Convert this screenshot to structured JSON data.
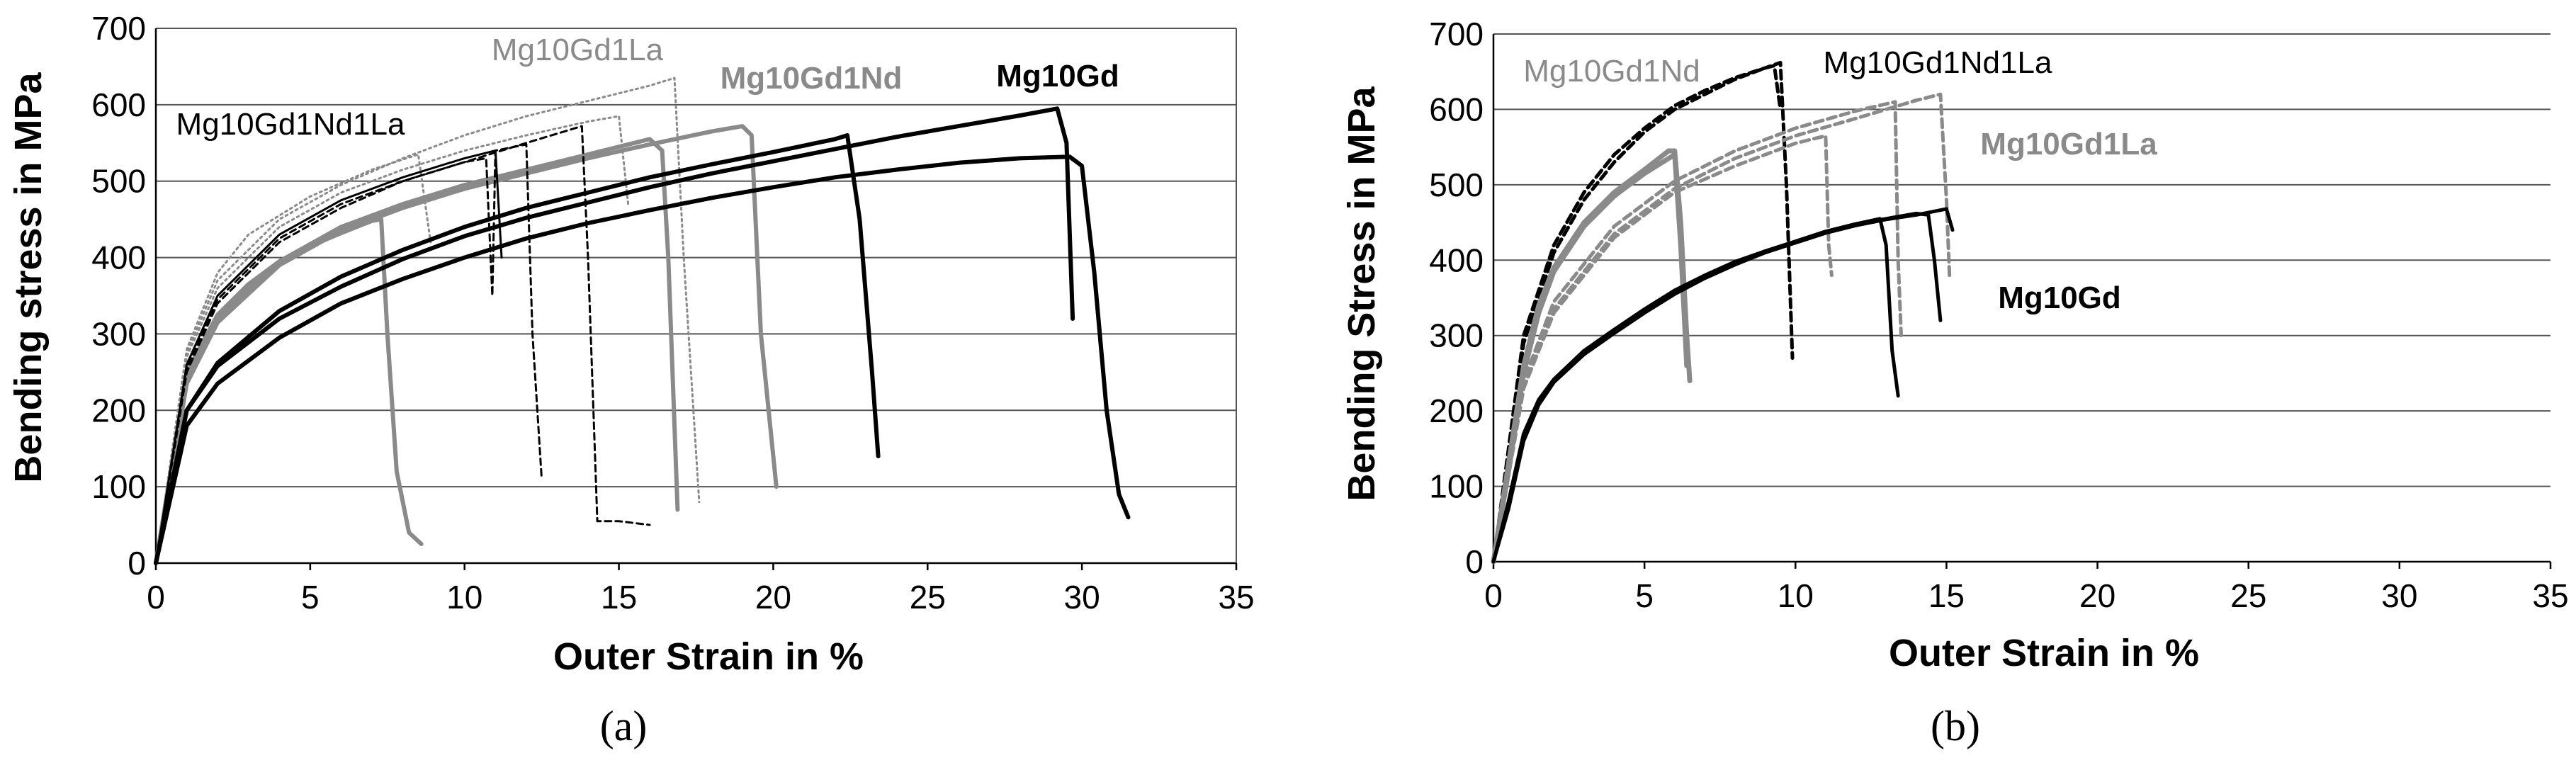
{
  "chart_data": [
    {
      "type": "line",
      "panel_label": "(a)",
      "xlabel": "Outer Strain in %",
      "ylabel": "Bending stress in MPa",
      "xlim": [
        0,
        35
      ],
      "ylim": [
        0,
        700
      ],
      "xticks": [
        "0",
        "5",
        "10",
        "15",
        "20",
        "25",
        "30",
        "35"
      ],
      "yticks": [
        "0",
        "100",
        "200",
        "300",
        "400",
        "500",
        "600",
        "700"
      ],
      "grid": true,
      "annotations": [
        {
          "text": "Mg10Gd1La",
          "color": "#8a8a8a",
          "weight": "normal"
        },
        {
          "text": "Mg10Gd1Nd",
          "color": "#8a8a8a",
          "weight": "bold"
        },
        {
          "text": "Mg10Gd",
          "color": "#000000",
          "weight": "bold"
        },
        {
          "text": "Mg10Gd1Nd1La",
          "color": "#000000",
          "weight": "normal"
        }
      ],
      "series": [
        {
          "name": "Mg10Gd1Nd",
          "style": "solid-gray",
          "x": [
            0,
            1,
            2,
            3,
            4,
            5,
            6,
            7,
            7.3,
            7.5,
            7.8,
            8.2,
            8.6
          ],
          "y": [
            0,
            250,
            325,
            365,
            395,
            415,
            432,
            448,
            450,
            300,
            120,
            40,
            25
          ]
        },
        {
          "name": "Mg10Gd1Nd",
          "style": "solid-gray",
          "x": [
            0,
            1,
            2,
            4,
            6,
            8,
            10,
            12,
            14,
            16,
            16.4,
            16.6,
            16.9
          ],
          "y": [
            0,
            240,
            320,
            395,
            440,
            470,
            495,
            515,
            535,
            555,
            540,
            400,
            70
          ]
        },
        {
          "name": "Mg10Gd1Nd",
          "style": "solid-gray",
          "x": [
            0,
            1,
            2,
            4,
            6,
            8,
            10,
            12,
            14,
            16,
            18,
            19,
            19.3,
            19.6,
            20.1
          ],
          "y": [
            0,
            235,
            315,
            390,
            435,
            465,
            490,
            510,
            530,
            548,
            565,
            572,
            560,
            300,
            100
          ]
        },
        {
          "name": "Mg10Gd1La",
          "style": "dotted-gray",
          "x": [
            0,
            1,
            2,
            3,
            5,
            7,
            8.5,
            8.9
          ],
          "y": [
            0,
            280,
            380,
            430,
            480,
            515,
            535,
            420
          ]
        },
        {
          "name": "Mg10Gd1La",
          "style": "dotted-gray",
          "x": [
            0,
            1,
            2,
            4,
            6,
            8,
            10,
            12,
            14,
            15,
            15.3
          ],
          "y": [
            0,
            270,
            360,
            440,
            485,
            515,
            540,
            560,
            578,
            585,
            470
          ]
        },
        {
          "name": "Mg10Gd1La",
          "style": "dotted-gray",
          "x": [
            0,
            1,
            2,
            4,
            6,
            8,
            10,
            12,
            14,
            16,
            16.8,
            17.1,
            17.6
          ],
          "y": [
            0,
            275,
            370,
            450,
            495,
            530,
            560,
            585,
            605,
            625,
            635,
            400,
            80
          ]
        },
        {
          "name": "Mg10Gd1Nd1La",
          "style": "solid-black-thin",
          "x": [
            0,
            1,
            2,
            4,
            6,
            8,
            10,
            11,
            11.2
          ],
          "y": [
            0,
            260,
            350,
            430,
            475,
            505,
            530,
            540,
            400
          ]
        },
        {
          "name": "Mg10Gd1Nd1La",
          "style": "dashed-black",
          "x": [
            0,
            1,
            2,
            4,
            6,
            8,
            10,
            10.7,
            10.9,
            11,
            12,
            12.2,
            12.5
          ],
          "y": [
            0,
            255,
            345,
            425,
            470,
            500,
            525,
            530,
            350,
            540,
            548,
            300,
            110
          ]
        },
        {
          "name": "Mg10Gd1Nd1La",
          "style": "dashed-black",
          "x": [
            0,
            1,
            2,
            4,
            6,
            8,
            10,
            12,
            13.8,
            14,
            14.3,
            15,
            16
          ],
          "y": [
            0,
            250,
            340,
            420,
            465,
            500,
            525,
            550,
            572,
            400,
            55,
            55,
            50
          ]
        },
        {
          "name": "Mg10Gd",
          "style": "solid-black-thick",
          "x": [
            0,
            1,
            2,
            4,
            6,
            8,
            10,
            12,
            14,
            16,
            18,
            20,
            22,
            22.4,
            22.8,
            23.2,
            23.4
          ],
          "y": [
            0,
            200,
            262,
            330,
            375,
            410,
            440,
            465,
            485,
            505,
            522,
            538,
            555,
            560,
            450,
            250,
            140
          ]
        },
        {
          "name": "Mg10Gd",
          "style": "solid-black-thick",
          "x": [
            0,
            1,
            2,
            4,
            6,
            8,
            10,
            12,
            14,
            16,
            18,
            20,
            22,
            24,
            26,
            28,
            29.2,
            29.5,
            29.7
          ],
          "y": [
            0,
            200,
            258,
            320,
            362,
            398,
            428,
            452,
            472,
            492,
            510,
            526,
            542,
            558,
            572,
            586,
            595,
            550,
            320
          ]
        },
        {
          "name": "Mg10Gd",
          "style": "solid-black-thick",
          "x": [
            0,
            1,
            2,
            4,
            6,
            8,
            10,
            12,
            14,
            16,
            18,
            20,
            22,
            24,
            26,
            28,
            29.6,
            30,
            30.4,
            30.8,
            31.2,
            31.5
          ],
          "y": [
            0,
            180,
            235,
            295,
            340,
            372,
            400,
            425,
            445,
            462,
            478,
            492,
            505,
            515,
            524,
            530,
            532,
            520,
            380,
            200,
            90,
            60
          ]
        }
      ]
    },
    {
      "type": "line",
      "panel_label": "(b)",
      "xlabel": "Outer Strain in %",
      "ylabel": "Bending Stress in MPa",
      "xlim": [
        0,
        35
      ],
      "ylim": [
        0,
        700
      ],
      "xticks": [
        "0",
        "5",
        "10",
        "15",
        "20",
        "25",
        "30",
        "35"
      ],
      "yticks": [
        "0",
        "100",
        "200",
        "300",
        "400",
        "500",
        "600",
        "700"
      ],
      "grid": true,
      "annotations": [
        {
          "text": "Mg10Gd1Nd",
          "color": "#8a8a8a",
          "weight": "normal"
        },
        {
          "text": "Mg10Gd1Nd1La",
          "color": "#000000",
          "weight": "normal"
        },
        {
          "text": "Mg10Gd1La",
          "color": "#8a8a8a",
          "weight": "bold"
        },
        {
          "text": "Mg10Gd",
          "color": "#000000",
          "weight": "bold"
        }
      ],
      "series": [
        {
          "name": "Mg10Gd1Nd1La",
          "style": "dashed-black-b",
          "x": [
            0,
            0.5,
            1,
            2,
            3,
            4,
            5,
            6,
            7,
            8,
            9,
            9.5,
            9.7,
            9.9
          ],
          "y": [
            0,
            150,
            300,
            420,
            490,
            540,
            575,
            605,
            625,
            642,
            655,
            662,
            500,
            270
          ]
        },
        {
          "name": "Mg10Gd1Nd1La",
          "style": "dashed-black-b",
          "x": [
            0,
            0.5,
            1,
            2,
            3,
            4,
            5,
            6,
            7,
            8,
            9,
            9.3,
            9.5
          ],
          "y": [
            0,
            140,
            290,
            410,
            480,
            530,
            570,
            600,
            620,
            640,
            655,
            658,
            600
          ]
        },
        {
          "name": "Mg10Gd1Nd",
          "style": "solid-gray-b",
          "x": [
            0,
            0.5,
            1,
            1.5,
            2,
            3,
            4,
            5,
            5.8,
            6,
            6.2,
            6.4,
            6.5
          ],
          "y": [
            0,
            130,
            260,
            340,
            390,
            450,
            490,
            520,
            545,
            545,
            450,
            300,
            240
          ]
        },
        {
          "name": "Mg10Gd1Nd",
          "style": "solid-gray-b",
          "x": [
            0,
            0.5,
            1,
            1.5,
            2,
            3,
            4,
            5,
            6,
            6.2,
            6.4
          ],
          "y": [
            0,
            120,
            250,
            330,
            385,
            445,
            485,
            515,
            540,
            420,
            260
          ]
        },
        {
          "name": "Mg10Gd1La",
          "style": "dashed-gray-b",
          "x": [
            0,
            1,
            2,
            4,
            6,
            8,
            10,
            11,
            11.1,
            11.2
          ],
          "y": [
            0,
            230,
            330,
            430,
            490,
            525,
            555,
            565,
            420,
            380
          ]
        },
        {
          "name": "Mg10Gd1La",
          "style": "dashed-gray-b",
          "x": [
            0,
            1,
            2,
            4,
            6,
            8,
            10,
            12,
            13.3,
            13.4,
            13.5
          ],
          "y": [
            0,
            240,
            345,
            445,
            505,
            545,
            575,
            598,
            610,
            400,
            300
          ]
        },
        {
          "name": "Mg10Gd1La",
          "style": "dashed-gray-b",
          "x": [
            0,
            1,
            2,
            4,
            6,
            8,
            10,
            12,
            14,
            14.8,
            15,
            15.1
          ],
          "y": [
            0,
            230,
            335,
            435,
            495,
            535,
            565,
            588,
            612,
            620,
            480,
            380
          ]
        },
        {
          "name": "Mg10Gd",
          "style": "solid-black-b",
          "x": [
            0,
            0.5,
            1,
            1.5,
            2,
            3,
            4,
            5,
            6,
            7,
            8,
            9,
            10,
            11,
            12,
            12.8,
            13,
            13.2,
            13.4
          ],
          "y": [
            0,
            80,
            170,
            215,
            242,
            280,
            308,
            335,
            360,
            380,
            398,
            412,
            425,
            438,
            448,
            455,
            420,
            280,
            220
          ]
        },
        {
          "name": "Mg10Gd",
          "style": "solid-black-b",
          "x": [
            0,
            0.5,
            1,
            1.5,
            2,
            3,
            4,
            5,
            6,
            7,
            8,
            9,
            10,
            11,
            12,
            13,
            14,
            14.4,
            14.6,
            14.8
          ],
          "y": [
            0,
            75,
            165,
            210,
            240,
            278,
            306,
            333,
            358,
            378,
            396,
            412,
            425,
            438,
            448,
            455,
            462,
            460,
            400,
            320
          ]
        },
        {
          "name": "Mg10Gd",
          "style": "solid-black-b",
          "x": [
            0,
            0.5,
            1,
            1.5,
            2,
            3,
            4,
            5,
            6,
            7,
            8,
            9,
            10,
            11,
            12,
            13,
            14,
            15,
            15.2
          ],
          "y": [
            0,
            70,
            160,
            208,
            238,
            275,
            303,
            330,
            355,
            376,
            394,
            410,
            423,
            436,
            446,
            454,
            460,
            468,
            440
          ]
        }
      ]
    }
  ]
}
